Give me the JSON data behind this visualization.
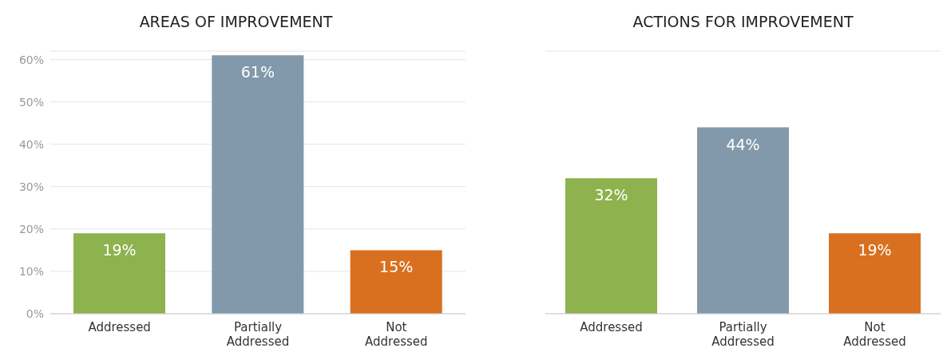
{
  "chart_data": [
    {
      "type": "bar",
      "title": "AREAS OF IMPROVEMENT",
      "categories": [
        "Addressed",
        "Partially Addressed",
        "Not Addressed"
      ],
      "values": [
        19,
        61,
        15
      ],
      "colors": [
        "#8db24e",
        "#8199aa",
        "#d9701f"
      ],
      "value_labels": [
        "19%",
        "61%",
        "15%"
      ],
      "ylim": [
        0,
        62
      ],
      "yticks": [
        {
          "value": 0,
          "label": "0%"
        },
        {
          "value": 10,
          "label": "10%"
        },
        {
          "value": 20,
          "label": "20%"
        },
        {
          "value": 30,
          "label": "30%"
        },
        {
          "value": 40,
          "label": "40%"
        },
        {
          "value": 50,
          "label": "50%"
        },
        {
          "value": 60,
          "label": "60%"
        }
      ],
      "grid": "y"
    },
    {
      "type": "bar",
      "title": "ACTIONS FOR IMPROVEMENT",
      "categories": [
        "Addressed",
        "Partially Addressed",
        "Not Addressed"
      ],
      "values": [
        32,
        44,
        19
      ],
      "colors": [
        "#8db24e",
        "#8199aa",
        "#d9701f"
      ],
      "value_labels": [
        "32%",
        "44%",
        "19%"
      ],
      "ylim": [
        0,
        62
      ],
      "yticks": [
        {
          "value": 0,
          "label": null
        },
        {
          "value": 10,
          "label": null
        },
        {
          "value": 20,
          "label": null
        },
        {
          "value": 30,
          "label": null
        },
        {
          "value": 40,
          "label": null
        },
        {
          "value": 50,
          "label": null
        },
        {
          "value": 60,
          "label": null
        }
      ],
      "grid": "y",
      "tick_labels": "x"
    }
  ]
}
